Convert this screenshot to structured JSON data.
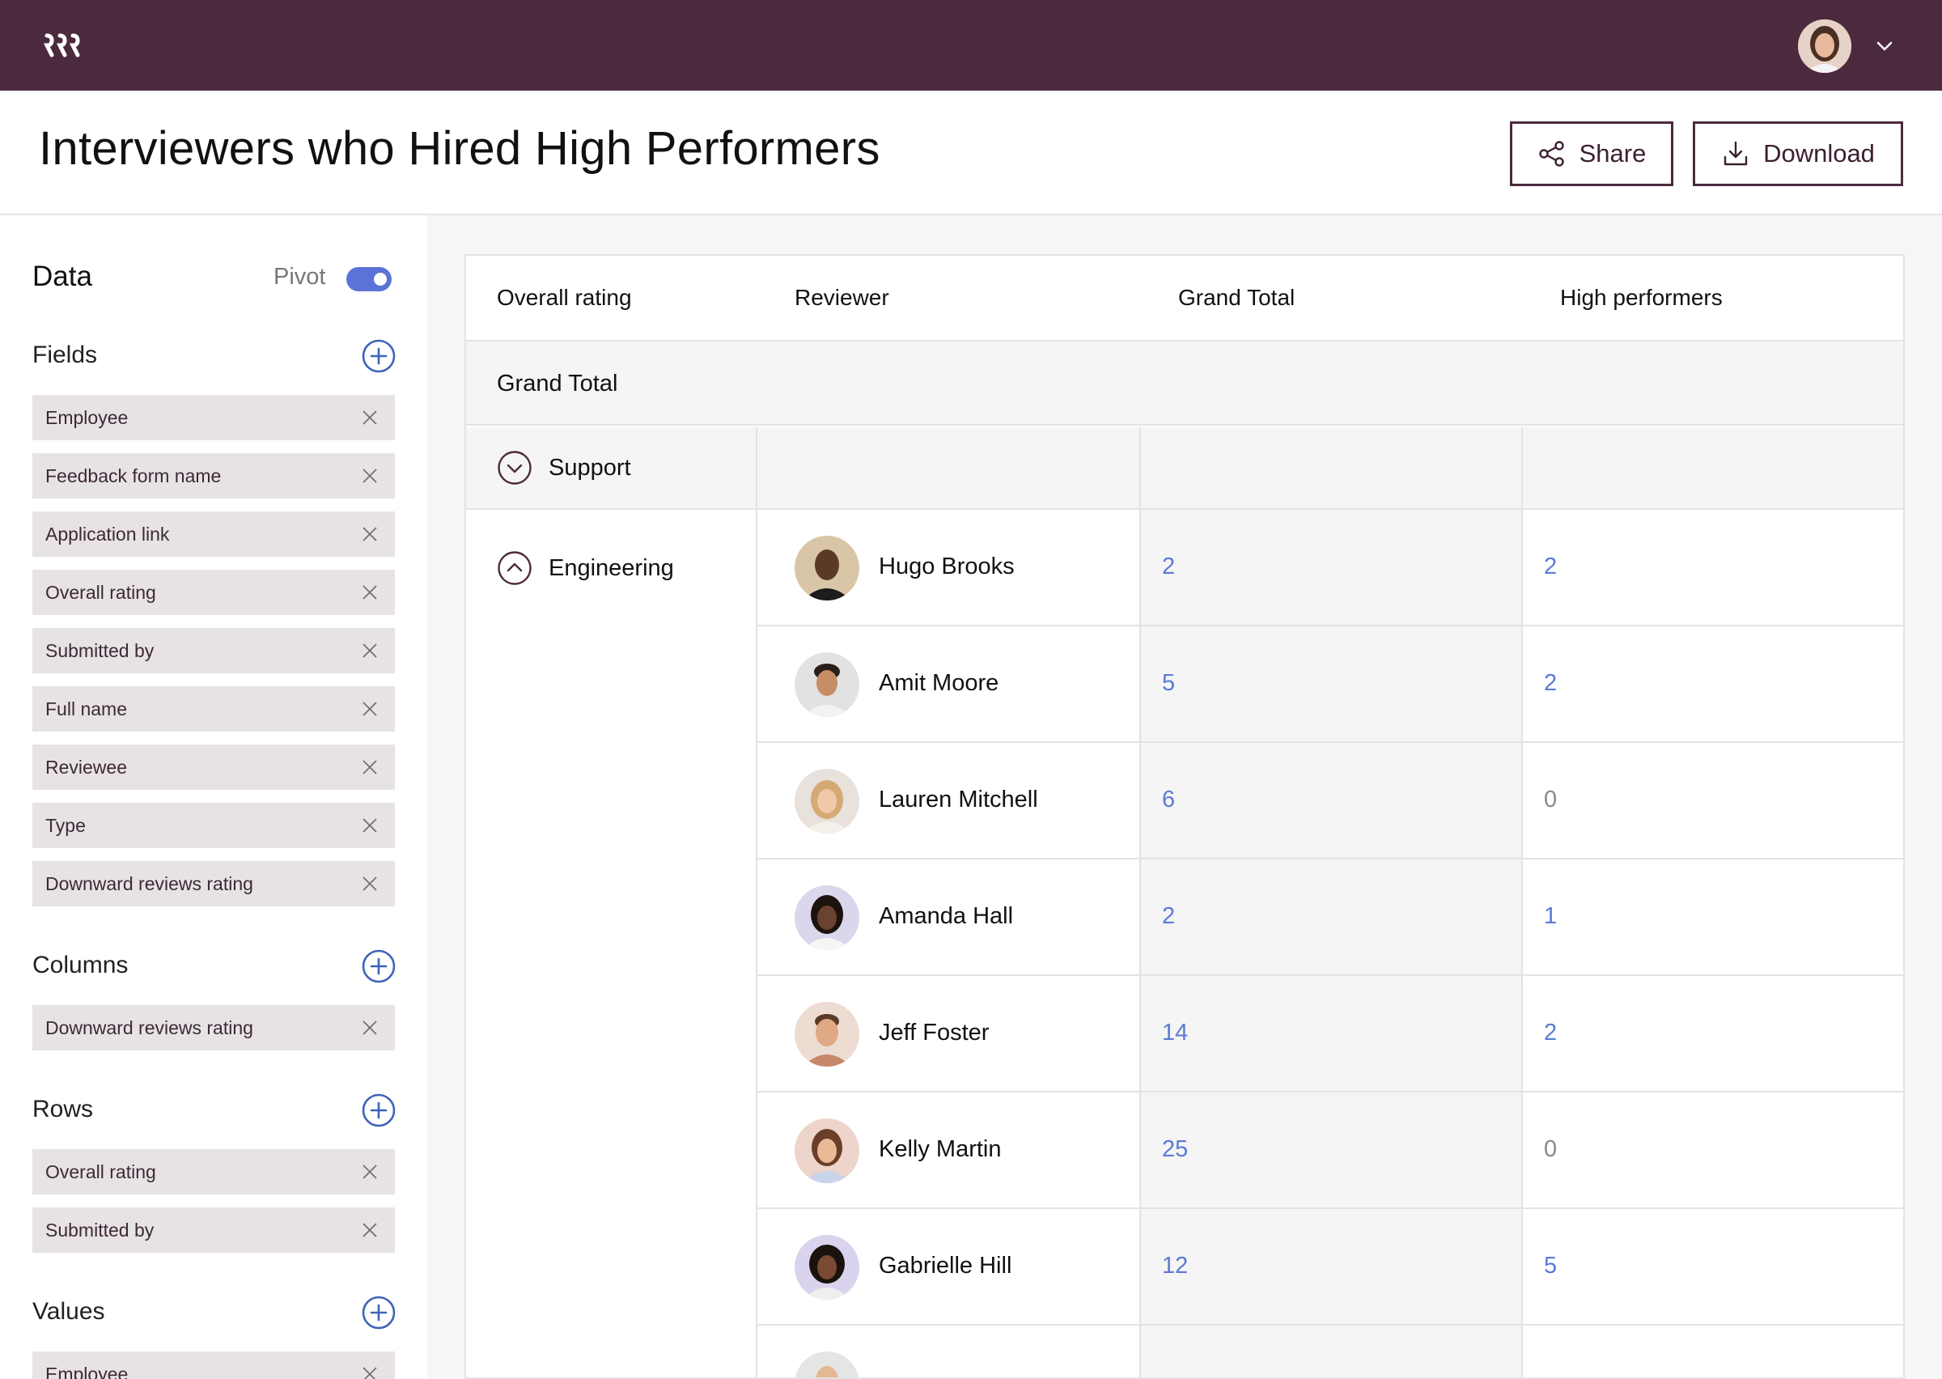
{
  "header": {
    "title": "Interviewers who Hired High Performers",
    "share_label": "Share",
    "download_label": "Download"
  },
  "brand": {
    "accent": "#4c2a3e",
    "link": "#5a7ad6",
    "toggle": "#5b73d6"
  },
  "sidebar": {
    "title": "Data",
    "pivot_label": "Pivot",
    "pivot_on": true,
    "fields_label": "Fields",
    "fields": [
      "Employee",
      "Feedback form name",
      "Application link",
      "Overall rating",
      "Submitted by",
      "Full name",
      "Reviewee",
      "Type",
      "Downward reviews rating"
    ],
    "columns_label": "Columns",
    "columns": [
      "Downward reviews rating"
    ],
    "rows_label": "Rows",
    "rows": [
      "Overall rating",
      "Submitted by"
    ],
    "values_label": "Values",
    "values": [
      "Employee"
    ]
  },
  "table": {
    "headers": [
      "Overall rating",
      "Reviewer",
      "Grand Total",
      "High performers"
    ],
    "grand_total_label": "Grand Total",
    "groups": [
      {
        "name": "Support",
        "expanded": false
      },
      {
        "name": "Engineering",
        "expanded": true
      }
    ],
    "rows": [
      {
        "reviewer": "Hugo Brooks",
        "grand_total": "2",
        "high_performers": "2"
      },
      {
        "reviewer": "Amit Moore",
        "grand_total": "5",
        "high_performers": "2"
      },
      {
        "reviewer": "Lauren Mitchell",
        "grand_total": "6",
        "high_performers": "0"
      },
      {
        "reviewer": "Amanda Hall",
        "grand_total": "2",
        "high_performers": "1"
      },
      {
        "reviewer": "Jeff Foster",
        "grand_total": "14",
        "high_performers": "2"
      },
      {
        "reviewer": "Kelly Martin",
        "grand_total": "25",
        "high_performers": "0"
      },
      {
        "reviewer": "Gabrielle Hill",
        "grand_total": "12",
        "high_performers": "5"
      }
    ]
  }
}
